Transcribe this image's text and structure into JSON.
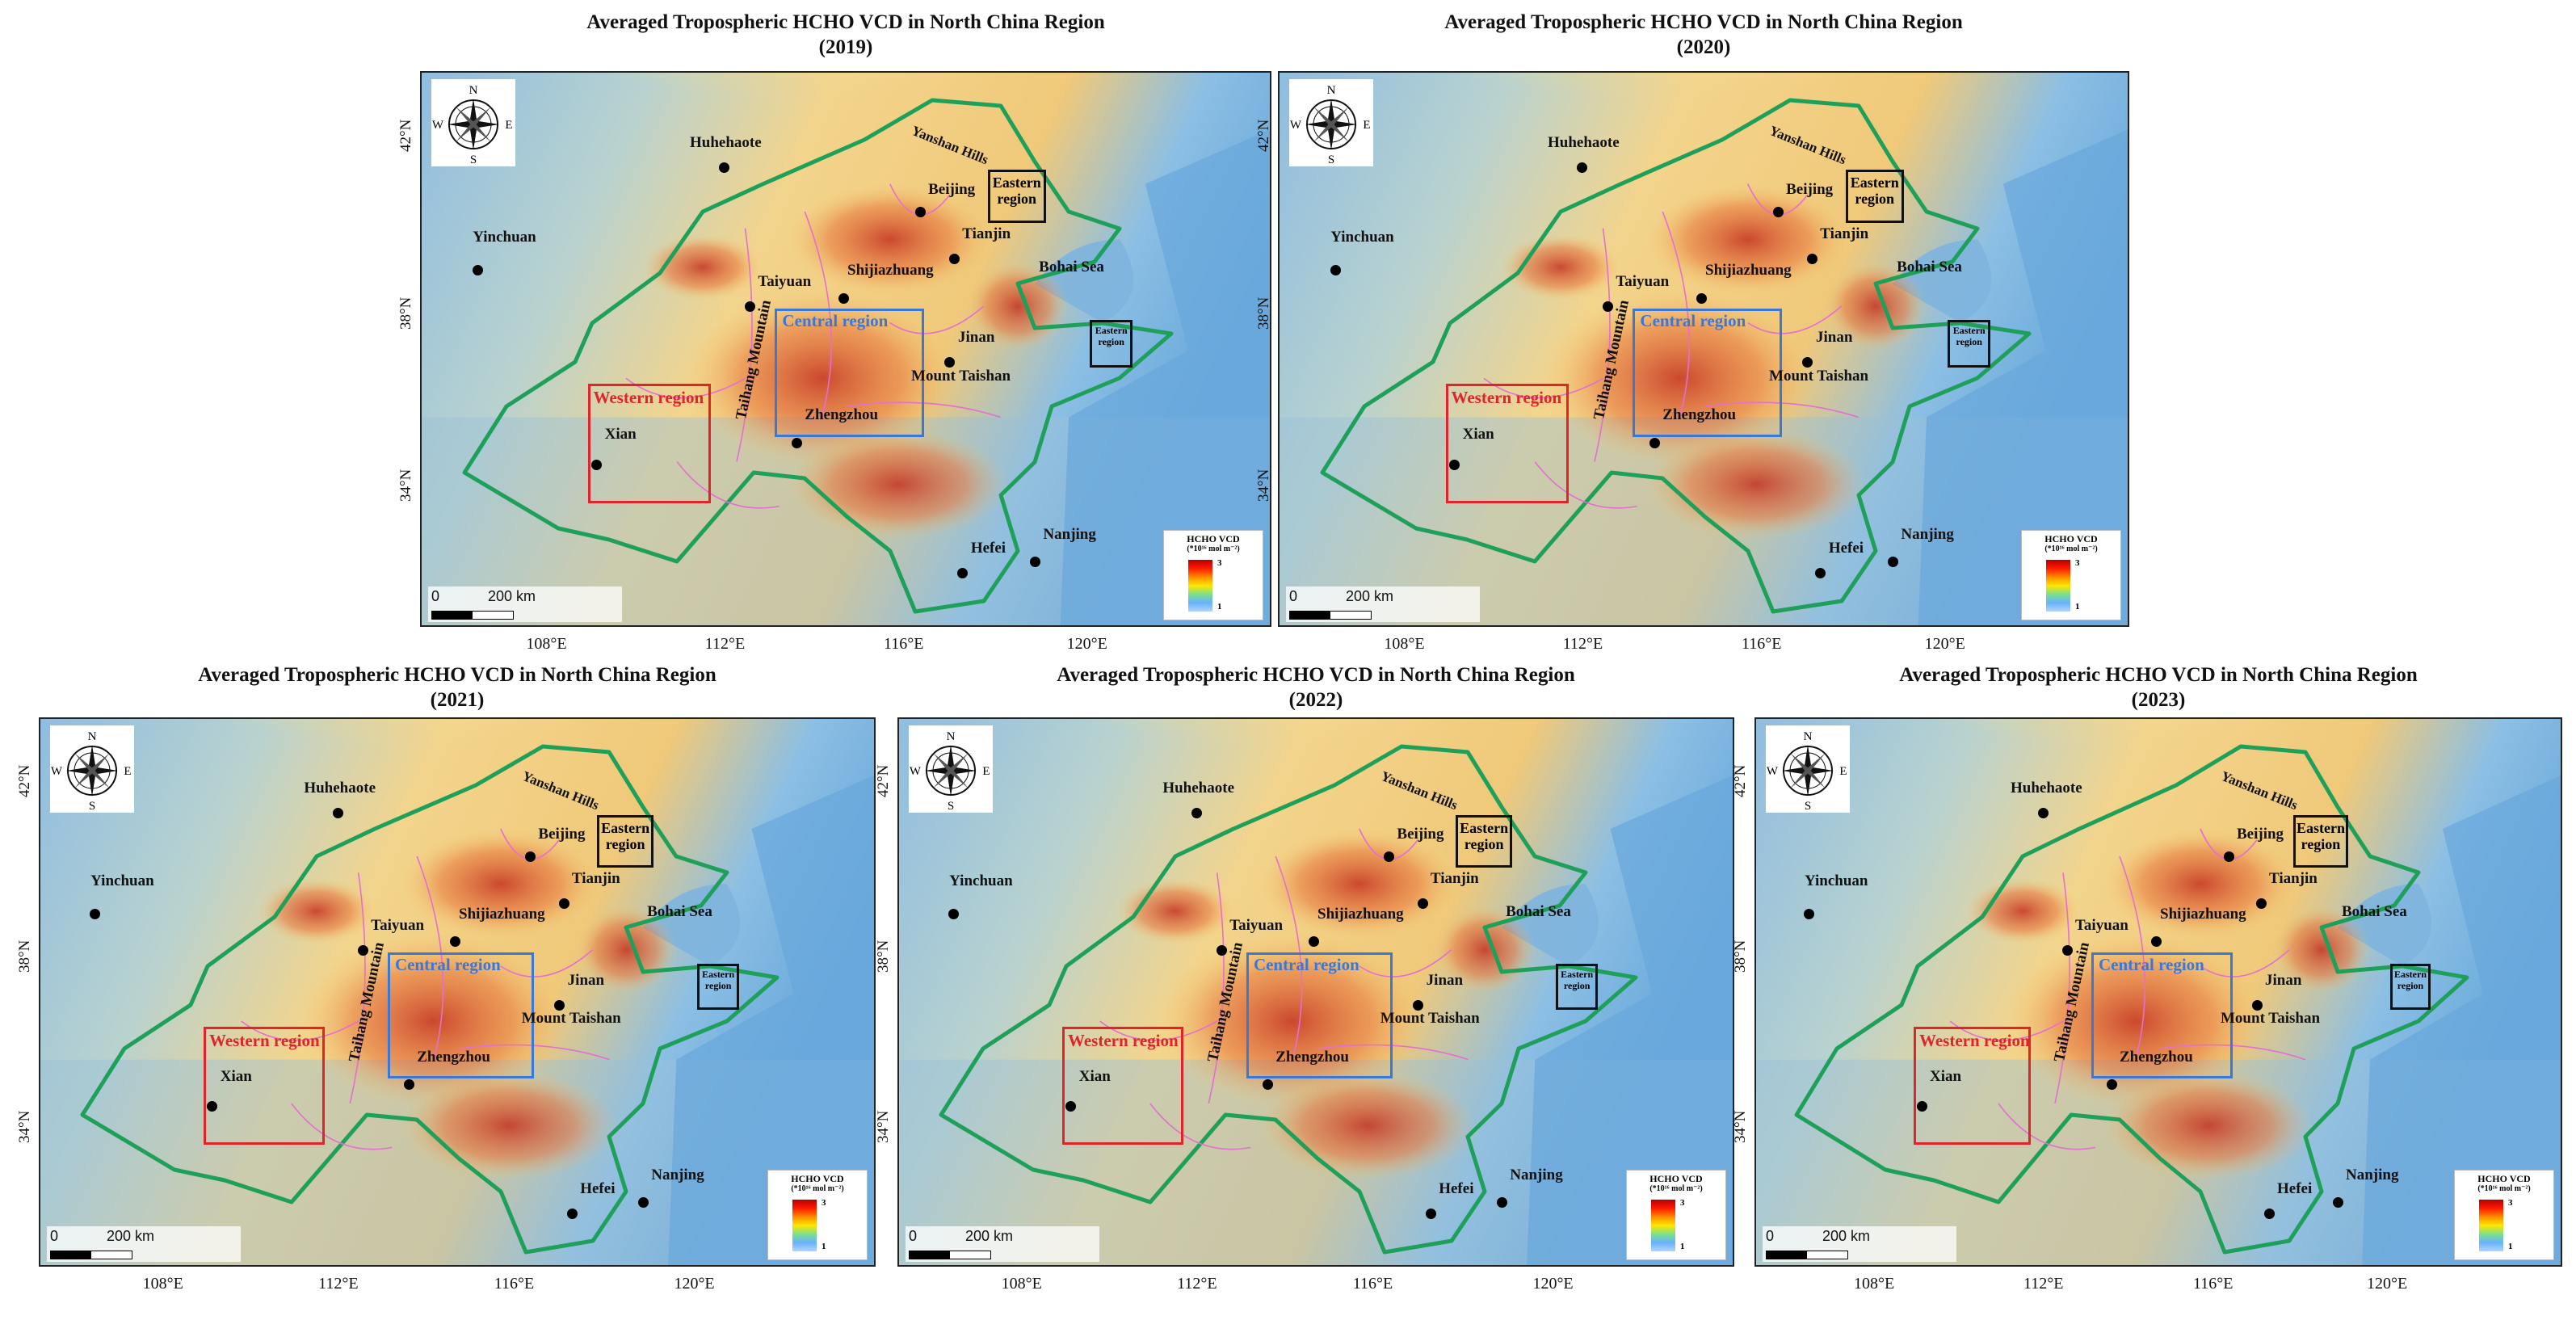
{
  "panels": [
    {
      "title": "Averaged Tropospheric HCHO VCD in North China Region",
      "year": "(2019)"
    },
    {
      "title": "Averaged Tropospheric HCHO VCD in North China Region",
      "year": "(2020)"
    },
    {
      "title": "Averaged Tropospheric HCHO VCD in North China Region",
      "year": "(2021)"
    },
    {
      "title": "Averaged Tropospheric HCHO VCD in North China Region",
      "year": "(2022)"
    },
    {
      "title": "Averaged Tropospheric HCHO VCD in North China Region",
      "year": "(2023)"
    }
  ],
  "cities": [
    "Huhehaote",
    "Beijing",
    "Tianjin",
    "Yinchuan",
    "Taiyuan",
    "Shijiazhuang",
    "Jinan",
    "Zhengzhou",
    "Xian",
    "Hefei",
    "Nanjing"
  ],
  "features": {
    "mount_taishan": "Mount Taishan",
    "taihang": "Taihang Mountain",
    "yanshan": "Yanshan Hills",
    "bohai": "Bohai Sea"
  },
  "regions": {
    "western": "Western region",
    "central": "Central region",
    "eastern_line1": "Eastern",
    "eastern_line2": "region"
  },
  "compass": {
    "n": "N",
    "s": "S",
    "e": "E",
    "w": "W"
  },
  "scalebar": {
    "zero": "0",
    "dist": "200 km"
  },
  "legend": {
    "title": "HCHO VCD",
    "units": "(*10¹⁶ mol m⁻²)",
    "max": "3",
    "min": "1"
  },
  "axes": {
    "x_ticks": [
      "108°E",
      "112°E",
      "116°E",
      "120°E"
    ],
    "y_ticks": [
      "42°N",
      "38°N",
      "34°N"
    ]
  },
  "colors": {
    "boundary": "#1fa05a",
    "province": "#e36fd0",
    "western": "#e0242a",
    "central": "#3a78d8",
    "eastern": "#111111",
    "high": "#c4301f",
    "low": "#7fb7e6"
  }
}
